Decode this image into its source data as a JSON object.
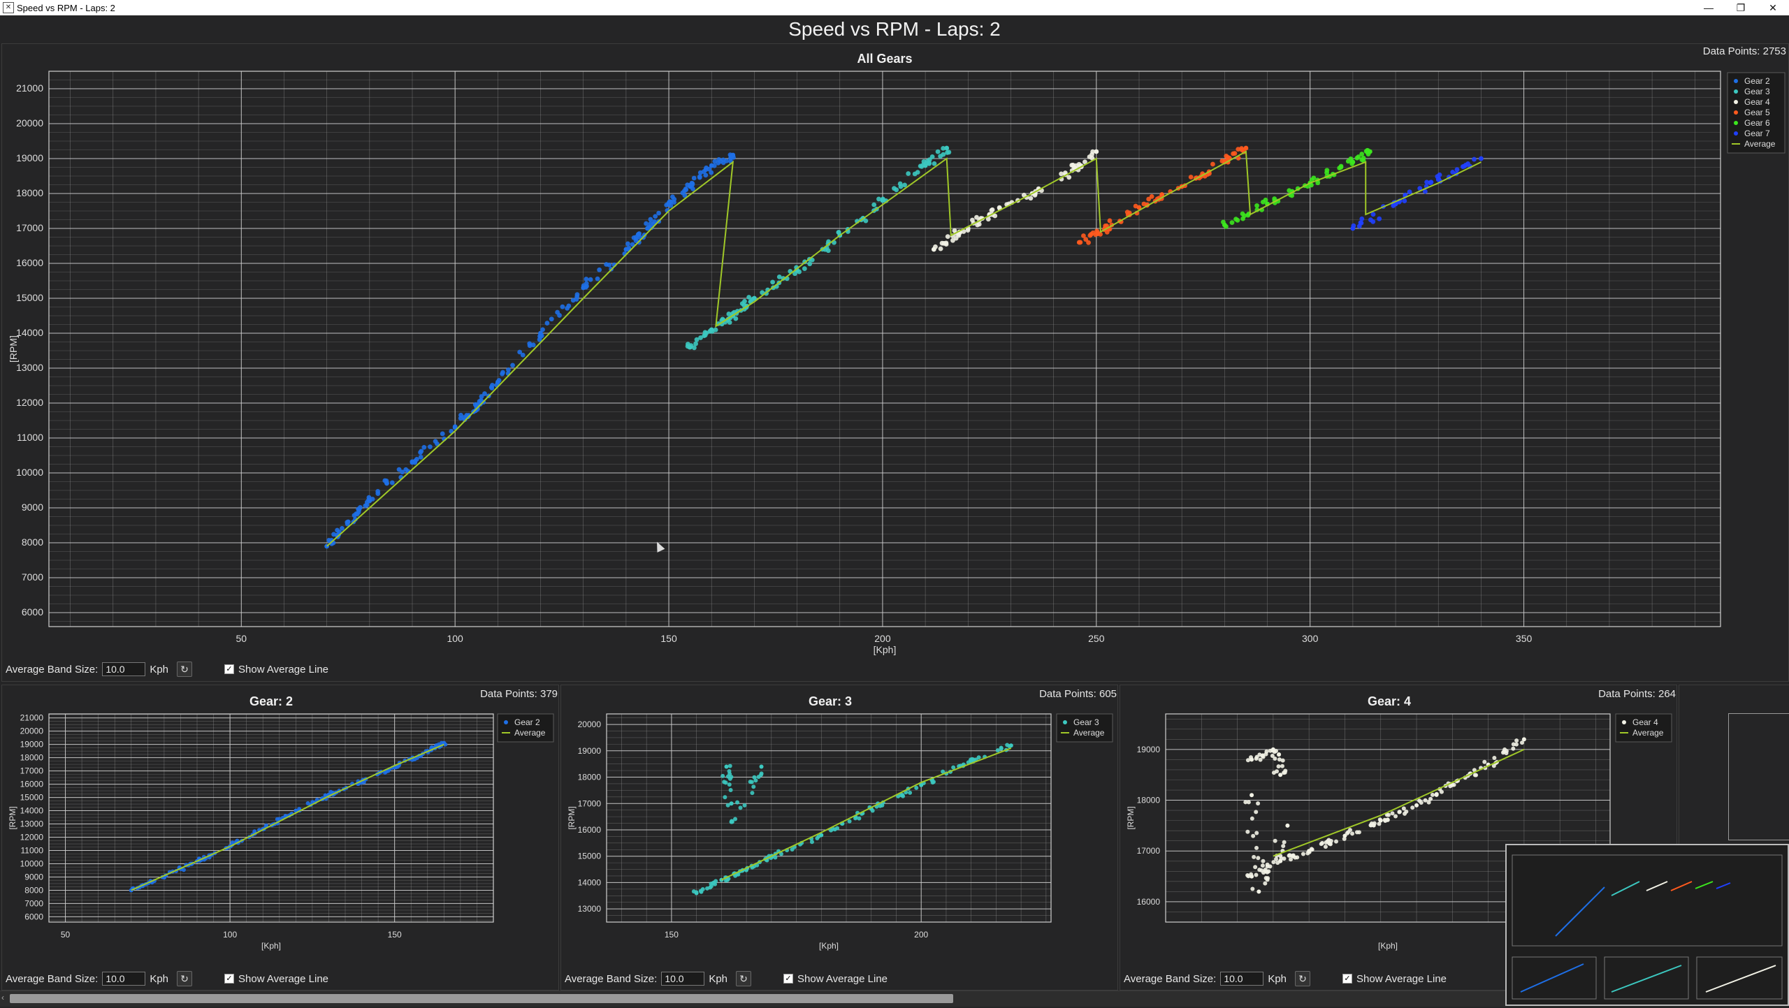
{
  "window": {
    "title": "Speed vs RPM - Laps: 2",
    "min_glyph": "—",
    "max_glyph": "❐",
    "close_glyph": "✕"
  },
  "main_title": "Speed vs RPM - Laps: 2",
  "controls": {
    "band_label": "Average Band Size:",
    "band_value": "10.0",
    "unit": "Kph",
    "show_avg_label": "Show Average Line",
    "check_glyph": "✓",
    "refresh_glyph": "↻"
  },
  "colors": {
    "bg": "#252526",
    "grid": "#9a9a9a",
    "gear2": "#1e6fe6",
    "gear3": "#3cc8c0",
    "gear4": "#f2f2e6",
    "gear5": "#ff5a1e",
    "gear6": "#3ce61e",
    "gear7": "#2040ff",
    "average": "#a0c828"
  },
  "chart_data": [
    {
      "type": "scatter",
      "title": "All Gears",
      "data_points_label": "Data Points: 2753",
      "xlabel": "[Kph]",
      "ylabel": "[RPM]",
      "xlim": [
        5,
        396
      ],
      "ylim": [
        5600,
        21500
      ],
      "xticks": [
        50,
        100,
        150,
        200,
        250,
        300,
        350
      ],
      "yticks": [
        6000,
        7000,
        8000,
        9000,
        10000,
        11000,
        12000,
        13000,
        14000,
        15000,
        16000,
        17000,
        18000,
        19000,
        20000,
        21000
      ],
      "grid": true,
      "legend_position": "top-right",
      "series": [
        {
          "name": "Gear 2",
          "color_key": "gear2",
          "x": [
            70,
            75,
            80,
            90,
            100,
            105,
            110,
            120,
            130,
            140,
            145,
            150,
            155,
            160,
            165
          ],
          "y": [
            7900,
            8600,
            9200,
            10300,
            11300,
            11900,
            12600,
            14000,
            15300,
            16400,
            17000,
            17700,
            18200,
            18800,
            19100
          ]
        },
        {
          "name": "Gear 3",
          "color_key": "gear3",
          "x": [
            155,
            160,
            165,
            170,
            180,
            190,
            200,
            210,
            215
          ],
          "y": [
            13600,
            14100,
            14500,
            15000,
            15800,
            16800,
            17800,
            18800,
            19300
          ]
        },
        {
          "name": "Gear 4",
          "color_key": "gear4",
          "x": [
            212,
            218,
            225,
            235,
            245,
            250
          ],
          "y": [
            16400,
            16900,
            17400,
            18000,
            18700,
            19200
          ]
        },
        {
          "name": "Gear 5",
          "color_key": "gear5",
          "x": [
            246,
            252,
            260,
            270,
            280,
            285
          ],
          "y": [
            16600,
            17000,
            17600,
            18200,
            18900,
            19300
          ]
        },
        {
          "name": "Gear 6",
          "color_key": "gear6",
          "x": [
            280,
            290,
            300,
            310,
            314
          ],
          "y": [
            17100,
            17700,
            18300,
            18900,
            19200
          ]
        },
        {
          "name": "Gear 7",
          "color_key": "gear7",
          "x": [
            310,
            320,
            330,
            340
          ],
          "y": [
            17000,
            17700,
            18400,
            19000
          ]
        },
        {
          "name": "Average",
          "color_key": "average",
          "kind": "line",
          "x": [
            70,
            100,
            130,
            150,
            165,
            161,
            170,
            190,
            215,
            216,
            235,
            250,
            251,
            270,
            285,
            286,
            300,
            313,
            313,
            330,
            340
          ],
          "y": [
            7900,
            11200,
            15000,
            17500,
            18900,
            14200,
            14900,
            16800,
            19000,
            16800,
            18000,
            19000,
            16900,
            18200,
            19200,
            17400,
            18300,
            18900,
            17400,
            18300,
            18900
          ]
        }
      ]
    },
    {
      "type": "scatter",
      "title": "Gear: 2",
      "data_points_label": "Data Points: 379",
      "xlabel": "[Kph]",
      "ylabel": "[RPM]",
      "xlim": [
        45,
        180
      ],
      "ylim": [
        5600,
        21300
      ],
      "xticks": [
        50,
        100,
        150
      ],
      "yticks": [
        6000,
        7000,
        8000,
        9000,
        10000,
        11000,
        12000,
        13000,
        14000,
        15000,
        16000,
        17000,
        18000,
        19000,
        20000,
        21000
      ],
      "legend_position": "top-right",
      "series": [
        {
          "name": "Gear 2",
          "color_key": "gear2",
          "x": [
            70,
            80,
            90,
            100,
            110,
            120,
            130,
            140,
            150,
            160,
            165
          ],
          "y": [
            8000,
            9000,
            10200,
            11300,
            12600,
            14000,
            15200,
            16200,
            17300,
            18500,
            19100
          ]
        },
        {
          "name": "Average",
          "color_key": "average",
          "kind": "line",
          "x": [
            70,
            100,
            130,
            150,
            165
          ],
          "y": [
            8000,
            11300,
            15100,
            17400,
            19000
          ]
        }
      ]
    },
    {
      "type": "scatter",
      "title": "Gear: 3",
      "data_points_label": "Data Points: 605",
      "xlabel": "[Kph]",
      "ylabel": "[RPM]",
      "xlim": [
        137,
        226
      ],
      "ylim": [
        12500,
        20400
      ],
      "xticks": [
        150,
        200
      ],
      "yticks": [
        13000,
        14000,
        15000,
        16000,
        17000,
        18000,
        19000,
        20000
      ],
      "legend_position": "top-right",
      "series": [
        {
          "name": "Gear 3",
          "color_key": "gear3",
          "x": [
            155,
            160,
            165,
            170,
            180,
            190,
            200,
            210,
            218,
            161,
            162,
            168,
            162
          ],
          "y": [
            13600,
            14100,
            14500,
            15000,
            15800,
            16800,
            17700,
            18600,
            19200,
            18400,
            16300,
            18400,
            17000
          ]
        },
        {
          "name": "Average",
          "color_key": "average",
          "kind": "line",
          "x": [
            160,
            180,
            200,
            218
          ],
          "y": [
            14100,
            15900,
            17800,
            19100
          ]
        }
      ]
    },
    {
      "type": "scatter",
      "title": "Gear: 4",
      "data_points_label": "Data Points: 264",
      "xlabel": "[Kph]",
      "ylabel": "[RPM]",
      "xlim": [
        200,
        262
      ],
      "ylim": [
        15600,
        19700
      ],
      "xticks": [],
      "yticks": [
        16000,
        17000,
        18000,
        19000
      ],
      "legend_position": "top-right",
      "series": [
        {
          "name": "Gear 4",
          "color_key": "gear4",
          "x": [
            212,
            216,
            220,
            225,
            230,
            235,
            240,
            245,
            250,
            212,
            215,
            216,
            212,
            213,
            217
          ],
          "y": [
            16500,
            16800,
            17000,
            17300,
            17600,
            17900,
            18300,
            18700,
            19200,
            18800,
            19000,
            18500,
            18100,
            16200,
            17500
          ]
        },
        {
          "name": "Average",
          "color_key": "average",
          "kind": "line",
          "x": [
            215,
            230,
            250
          ],
          "y": [
            16900,
            17700,
            19000
          ]
        }
      ]
    }
  ]
}
